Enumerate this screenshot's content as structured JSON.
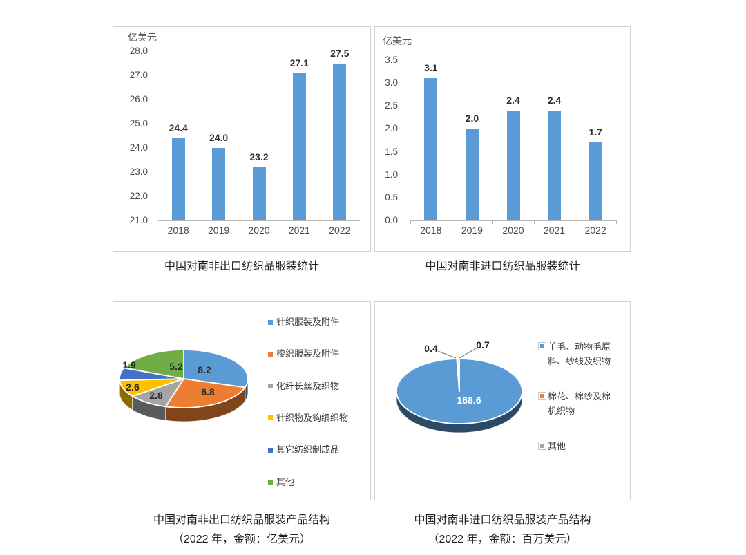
{
  "captions": {
    "export_bar": "中国对南非出口纺织品服装统计",
    "import_bar": "中国对南非进口纺织品服装统计",
    "export_pie_line1": "中国对南非出口纺织品服装产品结构",
    "export_pie_line2": "（2022 年，金额：亿美元）",
    "import_pie_line1": "中国对南非进口纺织品服装产品结构",
    "import_pie_line2": "（2022 年，金额：百万美元）"
  },
  "chart_data": [
    {
      "id": "export-bar",
      "type": "bar",
      "title": "中国对南非出口纺织品服装统计",
      "unit_label": "亿美元",
      "categories": [
        "2018",
        "2019",
        "2020",
        "2021",
        "2022"
      ],
      "values": [
        24.4,
        24.0,
        23.2,
        27.1,
        27.5
      ],
      "value_labels": [
        "24.4",
        "24.0",
        "23.2",
        "27.1",
        "27.5"
      ],
      "ylim": [
        21.0,
        28.0
      ],
      "ytick_step": 1.0,
      "yticks": [
        "28.0",
        "27.0",
        "26.0",
        "25.0",
        "24.0",
        "23.0",
        "22.0",
        "21.0"
      ],
      "bar_color": "#5B9BD5",
      "grid": false,
      "legend_position": "none"
    },
    {
      "id": "import-bar",
      "type": "bar",
      "title": "中国对南非进口纺织品服装统计",
      "unit_label": "亿美元",
      "categories": [
        "2018",
        "2019",
        "2020",
        "2021",
        "2022"
      ],
      "values": [
        3.1,
        2.0,
        2.4,
        2.4,
        1.7
      ],
      "value_labels": [
        "3.1",
        "2.0",
        "2.4",
        "2.4",
        "1.7"
      ],
      "ylim": [
        0.0,
        3.5
      ],
      "ytick_step": 0.5,
      "yticks": [
        "3.5",
        "3.0",
        "2.5",
        "2.0",
        "1.5",
        "1.0",
        "0.5",
        "0.0"
      ],
      "bar_color": "#5B9BD5",
      "grid": false,
      "legend_position": "none"
    },
    {
      "id": "export-pie",
      "type": "pie",
      "title": "中国对南非出口纺织品服装产品结构（2022 年，金额：亿美元）",
      "legend_position": "right",
      "slices": [
        {
          "name": "针织服装及附件",
          "value": 8.2,
          "label": "8.2",
          "color": "#5B9BD5"
        },
        {
          "name": "梭织服装及附件",
          "value": 6.8,
          "label": "6.8",
          "color": "#ED7D31"
        },
        {
          "name": "化纤长丝及织物",
          "value": 2.8,
          "label": "2.8",
          "color": "#A5A5A5"
        },
        {
          "name": "针织物及钩编织物",
          "value": 2.6,
          "label": "2.6",
          "color": "#FFC000"
        },
        {
          "name": "其它纺织制成品",
          "value": 1.9,
          "label": "1.9",
          "color": "#4472C4"
        },
        {
          "name": "其他",
          "value": 5.2,
          "label": "5.2",
          "color": "#70AD47"
        }
      ]
    },
    {
      "id": "import-pie",
      "type": "pie",
      "title": "中国对南非进口纺织品服装产品结构（2022 年，金额：百万美元）",
      "legend_position": "right",
      "slices": [
        {
          "name": "羊毛、动物毛原料、纱线及织物",
          "legend_lines": [
            "羊毛、动物毛原",
            "料、纱线及织物"
          ],
          "value": 168.6,
          "label": "168.6",
          "color": "#5B9BD5"
        },
        {
          "name": "棉花、棉纱及棉机织物",
          "legend_lines": [
            "棉花、棉纱及棉",
            "机织物"
          ],
          "value": 0.4,
          "label": "0.4",
          "color": "#ED7D31"
        },
        {
          "name": "其他",
          "legend_lines": [
            "其他"
          ],
          "value": 0.7,
          "label": "0.7",
          "color": "#A5A5A5"
        }
      ]
    }
  ]
}
